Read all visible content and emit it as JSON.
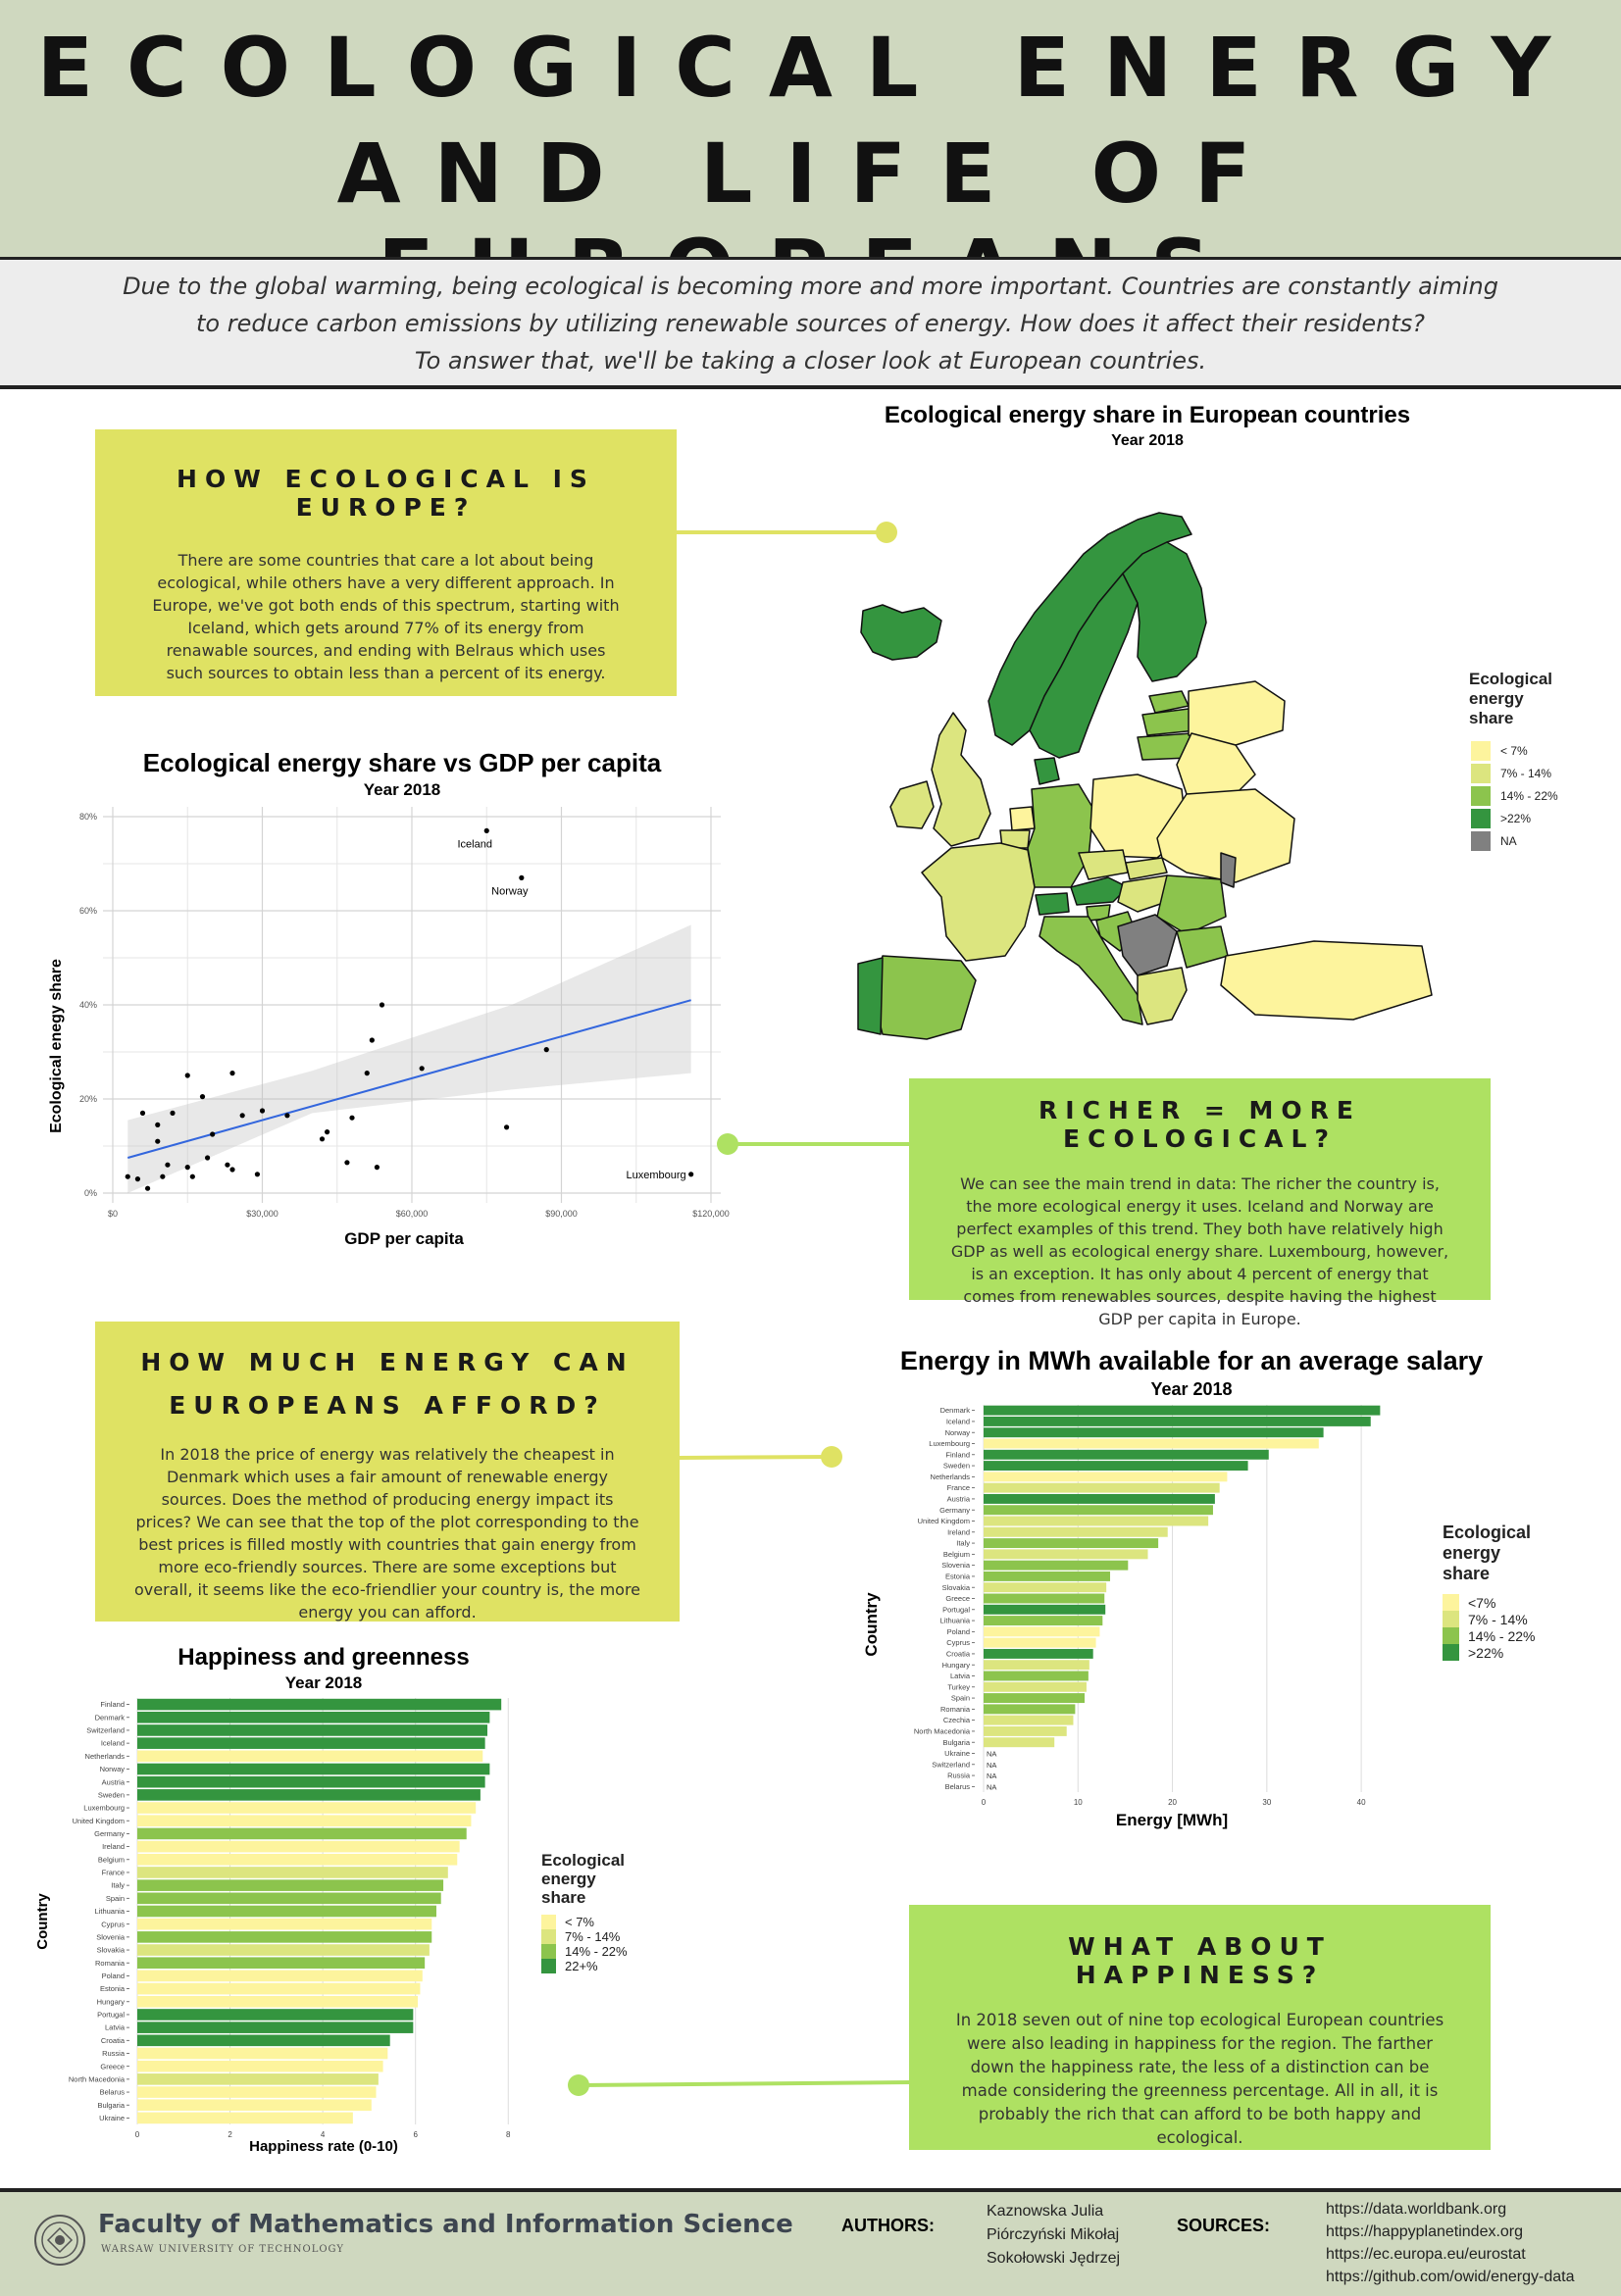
{
  "header": {
    "title_line1": "ECOLOGICAL ENERGY",
    "title_line2": "AND LIFE OF EUROPEANS",
    "intro": [
      "Due to the global warming, being ecological is becoming more and more important. Countries are constantly aiming",
      "to reduce carbon emissions by utilizing renewable sources of energy. How does it affect their residents?",
      "To answer that, we'll be taking a closer look at European countries."
    ]
  },
  "boxes": {
    "europe": {
      "heading": "HOW ECOLOGICAL IS EUROPE?",
      "text": "There are some countries that care a lot about being ecological, while others have a very different approach. In Europe, we've got both ends of this spectrum, starting with Iceland, which gets around 77% of its energy from renawable sources, and ending with Belraus which uses such sources to obtain less than a percent of its energy."
    },
    "richer": {
      "heading": "RICHER = MORE ECOLOGICAL?",
      "text": "We can see the main trend in data: The richer the country is, the more ecological energy it uses. Iceland and Norway are perfect examples of this trend. They both have relatively high GDP as well as ecological energy share. Luxembourg, however, is an exception. It has only about 4 percent of energy that comes from renewables sources, despite having the highest GDP per capita in Europe."
    },
    "afford": {
      "heading1": "HOW MUCH ENERGY CAN",
      "heading2": "EUROPEANS AFFORD?",
      "text": "In 2018 the price of energy was relatively the cheapest in Denmark which uses a fair amount of renewable energy sources. Does the method of producing energy impact its prices? We can see that the top of the plot corresponding to the best prices is filled mostly with countries that gain energy from more eco-friendly sources. There are some exceptions but overall, it seems like the eco-friendlier your country is, the more energy you can afford."
    },
    "happiness": {
      "heading": "WHAT ABOUT HAPPINESS?",
      "text": "In 2018 seven out of nine top ecological European countries were also leading in happiness for the region. The farther down the happiness rate, the less of a distinction can be made considering the greenness percentage. All in all, it is probably the rich that can afford to be both happy and ecological."
    }
  },
  "colors": {
    "c1": "#fdf49d",
    "c2": "#dce57f",
    "c3": "#8cc44d",
    "c4": "#34953f",
    "na": "#808080",
    "box_yellow": "#dfe263",
    "box_green": "#aee162"
  },
  "map": {
    "title": "Ecological energy share in European countries",
    "subtitle": "Year 2018",
    "legend_title": [
      "Ecological",
      "energy",
      "share"
    ],
    "legend": [
      "< 7%",
      "7% - 14%",
      "14% - 22%",
      ">22%",
      "NA"
    ]
  },
  "chart_data": [
    {
      "id": "scatter",
      "type": "scatter",
      "title": "Ecological energy share vs GDP per capita",
      "subtitle": "Year 2018",
      "xlabel": "GDP per capita",
      "ylabel": "Ecological enegy share",
      "xlim": [
        0,
        120000
      ],
      "ylim": [
        0,
        0.8
      ],
      "x_ticks": [
        0,
        30000,
        60000,
        90000,
        120000
      ],
      "x_tick_labels": [
        "$0",
        "$30,000",
        "$60,000",
        "$90,000",
        "$120,000"
      ],
      "y_ticks": [
        0,
        0.2,
        0.4,
        0.6,
        0.8
      ],
      "y_tick_labels": [
        "0%",
        "20%",
        "40%",
        "60%",
        "80%"
      ],
      "grid": true,
      "trend": {
        "x": [
          3000,
          116000
        ],
        "y": [
          0.075,
          0.41
        ]
      },
      "band_upper": {
        "x": [
          3000,
          40000,
          80000,
          116000
        ],
        "y": [
          0.155,
          0.26,
          0.4,
          0.57
        ]
      },
      "band_lower": {
        "x": [
          3000,
          40000,
          80000,
          116000
        ],
        "y": [
          0.0,
          0.17,
          0.22,
          0.255
        ]
      },
      "points": [
        {
          "x": 75000,
          "y": 0.77,
          "label": "Iceland"
        },
        {
          "x": 82000,
          "y": 0.67,
          "label": "Norway"
        },
        {
          "x": 116000,
          "y": 0.04,
          "label": "Luxembourg"
        },
        {
          "x": 54000,
          "y": 0.4
        },
        {
          "x": 52000,
          "y": 0.325
        },
        {
          "x": 87000,
          "y": 0.305
        },
        {
          "x": 62000,
          "y": 0.265
        },
        {
          "x": 51000,
          "y": 0.255
        },
        {
          "x": 15000,
          "y": 0.25
        },
        {
          "x": 24000,
          "y": 0.255
        },
        {
          "x": 18000,
          "y": 0.205
        },
        {
          "x": 12000,
          "y": 0.17
        },
        {
          "x": 6000,
          "y": 0.17
        },
        {
          "x": 30000,
          "y": 0.175
        },
        {
          "x": 26000,
          "y": 0.165
        },
        {
          "x": 35000,
          "y": 0.165
        },
        {
          "x": 48000,
          "y": 0.16
        },
        {
          "x": 9000,
          "y": 0.145
        },
        {
          "x": 79000,
          "y": 0.14
        },
        {
          "x": 43000,
          "y": 0.13
        },
        {
          "x": 20000,
          "y": 0.125
        },
        {
          "x": 42000,
          "y": 0.115
        },
        {
          "x": 9000,
          "y": 0.11
        },
        {
          "x": 19000,
          "y": 0.075
        },
        {
          "x": 47000,
          "y": 0.065
        },
        {
          "x": 11000,
          "y": 0.06
        },
        {
          "x": 23000,
          "y": 0.06
        },
        {
          "x": 15000,
          "y": 0.055
        },
        {
          "x": 24000,
          "y": 0.05
        },
        {
          "x": 53000,
          "y": 0.055
        },
        {
          "x": 16000,
          "y": 0.035
        },
        {
          "x": 29000,
          "y": 0.04
        },
        {
          "x": 10000,
          "y": 0.035
        },
        {
          "x": 3000,
          "y": 0.035
        },
        {
          "x": 5000,
          "y": 0.03
        },
        {
          "x": 7000,
          "y": 0.01
        }
      ]
    },
    {
      "id": "energy",
      "type": "bar",
      "orientation": "horizontal",
      "title": "Energy in MWh available for an average salary",
      "subtitle": "Year 2018",
      "xlabel": "Energy [MWh]",
      "ylabel": "Country",
      "xlim": [
        0,
        43
      ],
      "x_ticks": [
        0,
        10,
        20,
        30,
        40
      ],
      "legend_title": [
        "Ecological",
        "energy",
        "share"
      ],
      "legend": [
        "<7%",
        "7% - 14%",
        "14% - 22%",
        ">22%"
      ],
      "categories": [
        "Denmark",
        "Iceland",
        "Norway",
        "Luxembourg",
        "Finland",
        "Sweden",
        "Netherlands",
        "France",
        "Austria",
        "Germany",
        "United Kingdom",
        "Ireland",
        "Italy",
        "Belgium",
        "Slovenia",
        "Estonia",
        "Slovakia",
        "Greece",
        "Portugal",
        "Lithuania",
        "Poland",
        "Cyprus",
        "Croatia",
        "Hungary",
        "Latvia",
        "Turkey",
        "Spain",
        "Romania",
        "Czechia",
        "North Macedonia",
        "Bulgaria",
        "Ukraine",
        "Switzerland",
        "Russia",
        "Belarus"
      ],
      "values": [
        42,
        41,
        36,
        35.5,
        30.2,
        28,
        25.8,
        25,
        24.5,
        24.3,
        23.8,
        19.5,
        18.5,
        17.4,
        15.3,
        13.4,
        13,
        12.8,
        12.9,
        12.6,
        12.3,
        11.9,
        11.6,
        11.2,
        11.1,
        10.9,
        10.7,
        9.7,
        9.5,
        8.8,
        7.5,
        null,
        null,
        null,
        null
      ],
      "na_label": "NA",
      "shares": [
        4,
        4,
        4,
        1,
        4,
        4,
        1,
        2,
        4,
        3,
        2,
        2,
        3,
        2,
        3,
        3,
        2,
        3,
        4,
        3,
        1,
        1,
        4,
        2,
        3,
        2,
        3,
        3,
        2,
        2,
        2,
        null,
        null,
        null,
        null
      ]
    },
    {
      "id": "happiness",
      "type": "bar",
      "orientation": "horizontal",
      "title": "Happiness and greenness",
      "subtitle": "Year 2018",
      "xlabel": "Happiness rate (0-10)",
      "ylabel": "Country",
      "xlim": [
        0,
        8.1
      ],
      "x_ticks": [
        0,
        2,
        4,
        6,
        8
      ],
      "legend_title": [
        "Ecological",
        "energy",
        "share"
      ],
      "legend": [
        "< 7%",
        "7% - 14%",
        "14% - 22%",
        "22+%"
      ],
      "categories": [
        "Finland",
        "Denmark",
        "Switzerland",
        "Iceland",
        "Netherlands",
        "Norway",
        "Austria",
        "Sweden",
        "Luxembourg",
        "United Kingdom",
        "Germany",
        "Ireland",
        "Belgium",
        "France",
        "Italy",
        "Spain",
        "Lithuania",
        "Cyprus",
        "Slovenia",
        "Slovakia",
        "Romania",
        "Poland",
        "Estonia",
        "Hungary",
        "Portugal",
        "Latvia",
        "Croatia",
        "Russia",
        "Greece",
        "North Macedonia",
        "Belarus",
        "Bulgaria",
        "Ukraine"
      ],
      "values": [
        7.85,
        7.6,
        7.55,
        7.5,
        7.45,
        7.6,
        7.5,
        7.4,
        7.3,
        7.2,
        7.1,
        6.95,
        6.9,
        6.7,
        6.6,
        6.55,
        6.45,
        6.35,
        6.35,
        6.3,
        6.2,
        6.15,
        6.1,
        6.05,
        5.95,
        5.95,
        5.45,
        5.4,
        5.3,
        5.2,
        5.15,
        5.05,
        4.65
      ],
      "shares": [
        4,
        4,
        4,
        4,
        1,
        4,
        4,
        4,
        1,
        1,
        3,
        1,
        1,
        2,
        3,
        3,
        3,
        1,
        3,
        2,
        3,
        1,
        1,
        1,
        4,
        4,
        4,
        1,
        1,
        2,
        1,
        1,
        1
      ]
    }
  ],
  "footer": {
    "faculty": "Faculty of Mathematics and Information Science",
    "university": "WARSAW UNIVERSITY OF TECHNOLOGY",
    "authors_label": "AUTHORS:",
    "authors": [
      "Kaznowska Julia",
      "Piórczyński Mikołaj",
      "Sokołowski Jędrzej"
    ],
    "sources_label": "SOURCES:",
    "sources": [
      "https://data.worldbank.org",
      "https://happyplanetindex.org",
      "https://ec.europa.eu/eurostat",
      "https://github.com/owid/energy-data"
    ]
  }
}
